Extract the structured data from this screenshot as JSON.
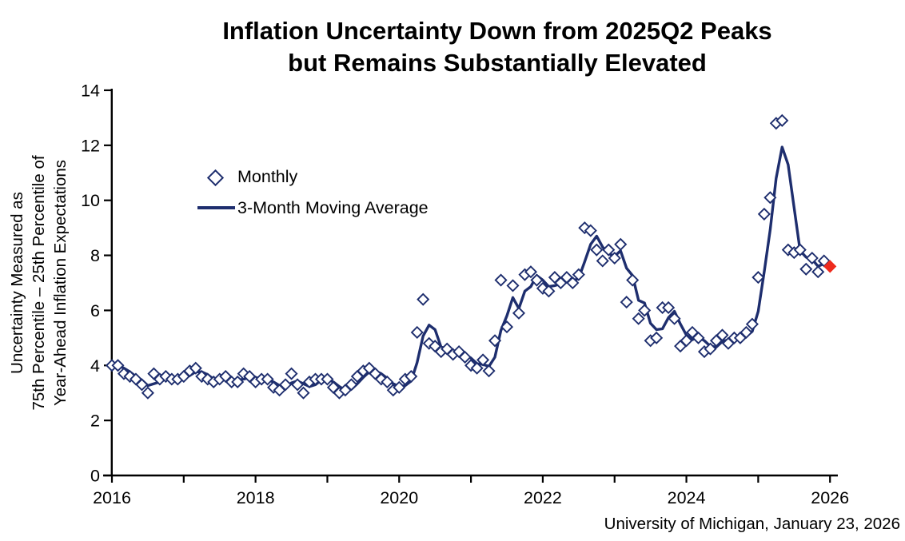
{
  "title": {
    "line1": "Inflation Uncertainty Down from 2025Q2 Peaks",
    "line2": "but Remains Substantially Elevated"
  },
  "y_axis": {
    "label_lines": [
      "Uncertainty Measured as",
      "75th Percentile – 25th Percentile of",
      "Year-Ahead Inflation Expectations"
    ],
    "ticks": [
      0,
      2,
      4,
      6,
      8,
      10,
      12,
      14
    ],
    "range": [
      0,
      14
    ]
  },
  "x_axis": {
    "tick_years": [
      2016,
      2017,
      2018,
      2019,
      2020,
      2021,
      2022,
      2023,
      2024,
      2025,
      2026
    ],
    "labeled_years": [
      2016,
      2018,
      2020,
      2022,
      2024,
      2026
    ],
    "range": [
      2016,
      2026.1
    ]
  },
  "legend": {
    "position": "upper-left-inside",
    "items": [
      {
        "label": "Monthly",
        "marker": "open-diamond"
      },
      {
        "label": "3-Month Moving Average",
        "marker": "line"
      }
    ]
  },
  "source": "University of Michigan, January 23, 2026",
  "colors": {
    "navy": "#1e2e6e",
    "red": "#ee2a1c",
    "axis": "#000000",
    "background": "#ffffff"
  },
  "chart_data": {
    "type": "scatter+line",
    "title": "Inflation Uncertainty Down from 2025Q2 Peaks but Remains Substantially Elevated",
    "ylabel": "Uncertainty Measured as 75th Percentile – 25th Percentile of Year-Ahead Inflation Expectations",
    "xlabel": "",
    "ylim": [
      0,
      14
    ],
    "grid": false,
    "x_start": "2016-01",
    "x_end": "2026-01",
    "x_unit": "month",
    "monthly": {
      "name": "Monthly",
      "marker": "open-diamond",
      "values": [
        4.0,
        4.0,
        3.7,
        3.6,
        3.5,
        3.3,
        3.0,
        3.7,
        3.5,
        3.6,
        3.5,
        3.5,
        3.6,
        3.8,
        3.9,
        3.6,
        3.5,
        3.4,
        3.5,
        3.6,
        3.4,
        3.4,
        3.7,
        3.6,
        3.4,
        3.5,
        3.5,
        3.2,
        3.1,
        3.3,
        3.7,
        3.3,
        3.0,
        3.4,
        3.5,
        3.5,
        3.5,
        3.2,
        3.0,
        3.1,
        3.3,
        3.6,
        3.8,
        3.9,
        3.7,
        3.5,
        3.4,
        3.1,
        3.2,
        3.5,
        3.6,
        5.2,
        6.4,
        4.8,
        4.7,
        4.5,
        4.6,
        4.4,
        4.5,
        4.3,
        4.0,
        3.9,
        4.2,
        3.8,
        4.9,
        7.1,
        5.4,
        6.9,
        5.9,
        7.3,
        7.4,
        7.1,
        6.8,
        6.7,
        7.2,
        7.0,
        7.2,
        7.0,
        7.3,
        9.0,
        8.9,
        8.2,
        7.8,
        8.2,
        7.9,
        8.4,
        6.3,
        7.1,
        5.7,
        6.0,
        4.9,
        5.0,
        6.1,
        6.1,
        5.7,
        4.7,
        4.9,
        5.2,
        5.0,
        4.5,
        4.6,
        4.9,
        5.1,
        4.8,
        5.0,
        5.0,
        5.2,
        5.5,
        7.2,
        9.5,
        10.1,
        12.8,
        12.9,
        8.2,
        8.1,
        8.2,
        7.5,
        7.9,
        7.4,
        7.8,
        7.6
      ]
    },
    "latest_point": {
      "month": "2026-01",
      "value": 7.6,
      "color": "red",
      "marker": "filled-diamond"
    },
    "moving_average": {
      "name": "3-Month Moving Average",
      "window": 3,
      "derivation": "trailing 3-month mean of monthly values, drawn through 2025-12"
    }
  }
}
